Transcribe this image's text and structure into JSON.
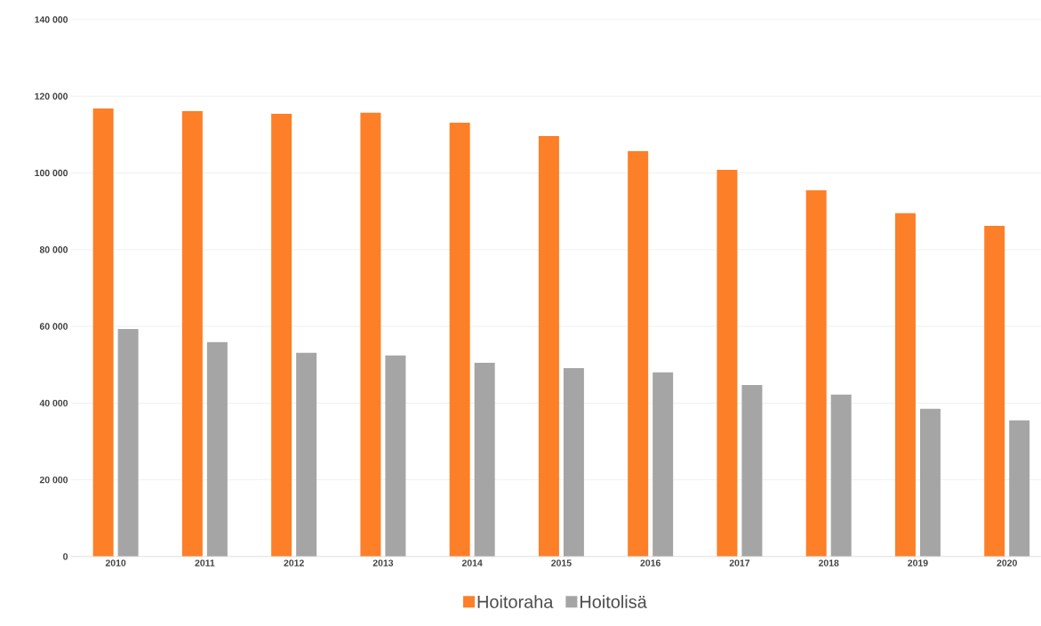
{
  "chart_data": {
    "type": "bar",
    "categories": [
      "2010",
      "2011",
      "2012",
      "2013",
      "2014",
      "2015",
      "2016",
      "2017",
      "2018",
      "2019",
      "2020"
    ],
    "series": [
      {
        "name": "Hoitoraha",
        "color": "#fd7f28",
        "values": [
          116800,
          116100,
          115400,
          115700,
          113100,
          109600,
          105700,
          100800,
          95500,
          89500,
          86200
        ]
      },
      {
        "name": "Hoitolisä",
        "color": "#a5a5a5",
        "values": [
          59300,
          55900,
          53100,
          52400,
          50500,
          49100,
          48000,
          44700,
          42200,
          38500,
          35500
        ]
      }
    ],
    "ylim": [
      0,
      140000
    ],
    "yticks": [
      {
        "value": 0,
        "label": "0"
      },
      {
        "value": 20000,
        "label": "20 000"
      },
      {
        "value": 40000,
        "label": "40 000"
      },
      {
        "value": 60000,
        "label": "60 000"
      },
      {
        "value": 80000,
        "label": "80 000"
      },
      {
        "value": 100000,
        "label": "100 000"
      },
      {
        "value": 120000,
        "label": "120 000"
      },
      {
        "value": 140000,
        "label": "140 000"
      }
    ],
    "grid": "y",
    "legend": "bottom"
  }
}
